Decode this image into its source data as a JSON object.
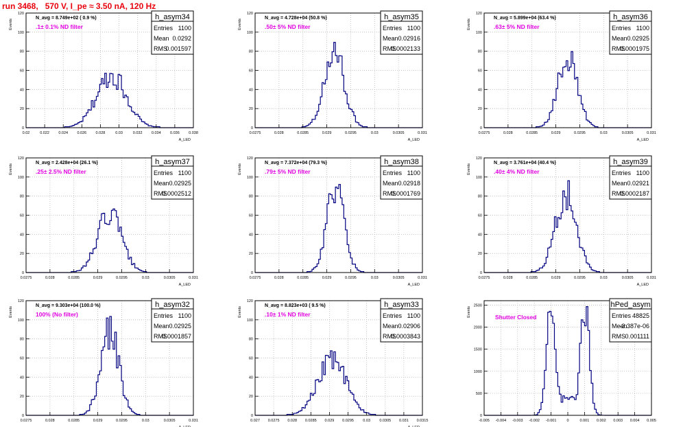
{
  "run_title": "run 3468,   570 V, I_pe ≈ 3.50 nA, 120 Hz",
  "y_axis_label": "Events",
  "stats_labels": [
    "Entries",
    "Mean",
    "RMS"
  ],
  "chart_data": [
    {
      "type": "bar",
      "name": "h_asym34",
      "nlabel": "N_avg = 8.749e+02 ( 0.9 %)",
      "filter": ".1± 0.1% ND filter",
      "entries": "1100",
      "mean": "0.0292",
      "rms": "0.001597",
      "xlim": [
        0.02,
        0.038
      ],
      "ylim": [
        0,
        120
      ],
      "yticks": [
        0,
        20,
        40,
        60,
        80,
        100,
        120
      ],
      "xticks": [
        "0.02",
        "0.022",
        "0.024",
        "0.026",
        "0.028",
        "0.03",
        "0.032",
        "0.034",
        "0.036",
        "0.038"
      ],
      "xlabel": "A_LED",
      "grid": true,
      "gaussian": {
        "mu": 0.0292,
        "sigma": 0.0016,
        "peak": 55
      }
    },
    {
      "type": "bar",
      "name": "h_asym35",
      "nlabel": "N_avg = 4.728e+04 (50.8 %)",
      "filter": ".50± 5% ND filter",
      "entries": "1100",
      "mean": "0.02916",
      "rms": "0.0002133",
      "xlim": [
        0.0275,
        0.031
      ],
      "ylim": [
        0,
        120
      ],
      "yticks": [
        0,
        20,
        40,
        60,
        80,
        100,
        120
      ],
      "xticks": [
        "0.0275",
        "0.028",
        "0.0285",
        "0.029",
        "0.0295",
        "0.03",
        "0.0305",
        "0.031"
      ],
      "xlabel": "A_LED",
      "grid": true,
      "gaussian": {
        "mu": 0.02916,
        "sigma": 0.00021,
        "peak": 78
      }
    },
    {
      "type": "bar",
      "name": "h_asym36",
      "nlabel": "N_avg = 5.899e+04 (63.4 %)",
      "filter": ".63± 5% ND filter",
      "entries": "1100",
      "mean": "0.02925",
      "rms": "0.0001975",
      "xlim": [
        0.0275,
        0.031
      ],
      "ylim": [
        0,
        120
      ],
      "yticks": [
        0,
        20,
        40,
        60,
        80,
        100,
        120
      ],
      "xticks": [
        "0.0275",
        "0.028",
        "0.0285",
        "0.029",
        "0.0295",
        "0.03",
        "0.0305",
        "0.031"
      ],
      "xlabel": "A_LED",
      "grid": true,
      "gaussian": {
        "mu": 0.02925,
        "sigma": 0.0002,
        "peak": 76
      }
    },
    {
      "type": "bar",
      "name": "h_asym37",
      "nlabel": "N_avg = 2.428e+04 (26.1 %)",
      "filter": ".25± 2.5% ND filter",
      "entries": "1100",
      "mean": "0.02925",
      "rms": "0.0002512",
      "xlim": [
        0.0275,
        0.031
      ],
      "ylim": [
        0,
        120
      ],
      "yticks": [
        0,
        20,
        40,
        60,
        80,
        100,
        120
      ],
      "xticks": [
        "0.0275",
        "0.028",
        "0.0285",
        "0.029",
        "0.0295",
        "0.03",
        "0.0305",
        "0.031"
      ],
      "xlabel": "A_LED",
      "grid": true,
      "gaussian": {
        "mu": 0.02925,
        "sigma": 0.00025,
        "peak": 62
      }
    },
    {
      "type": "bar",
      "name": "h_asym38",
      "nlabel": "N_avg = 7.372e+04 (79.3 %)",
      "filter": ".79± 5% ND filter",
      "entries": "1100",
      "mean": "0.02918",
      "rms": "0.0001769",
      "xlim": [
        0.0275,
        0.031
      ],
      "ylim": [
        0,
        120
      ],
      "yticks": [
        0,
        20,
        40,
        60,
        80,
        100,
        120
      ],
      "xticks": [
        "0.0275",
        "0.028",
        "0.0285",
        "0.029",
        "0.0295",
        "0.03",
        "0.0305",
        "0.031"
      ],
      "xlabel": "A_LED",
      "grid": true,
      "gaussian": {
        "mu": 0.02918,
        "sigma": 0.00018,
        "peak": 88
      }
    },
    {
      "type": "bar",
      "name": "h_asym39",
      "nlabel": "N_avg = 3.761e+04 (40.4 %)",
      "filter": ".40± 4% ND filter",
      "entries": "1100",
      "mean": "0.02921",
      "rms": "0.0002187",
      "xlim": [
        0.0275,
        0.031
      ],
      "ylim": [
        0,
        120
      ],
      "yticks": [
        0,
        20,
        40,
        60,
        80,
        100,
        120
      ],
      "xticks": [
        "0.0275",
        "0.028",
        "0.0285",
        "0.029",
        "0.0295",
        "0.03",
        "0.0305",
        "0.031"
      ],
      "xlabel": "A_LED",
      "grid": true,
      "gaussian": {
        "mu": 0.02921,
        "sigma": 0.00022,
        "peak": 82
      }
    },
    {
      "type": "bar",
      "name": "h_asym32",
      "nlabel": "N_avg = 9.303e+04 (100.0 %)",
      "filter": "100% (No filter)",
      "entries": "1100",
      "mean": "0.02925",
      "rms": "0.0001857",
      "xlim": [
        0.0275,
        0.031
      ],
      "ylim": [
        0,
        120
      ],
      "yticks": [
        0,
        20,
        40,
        60,
        80,
        100,
        120
      ],
      "xticks": [
        "0.0275",
        "0.028",
        "0.0285",
        "0.029",
        "0.0295",
        "0.03",
        "0.0305",
        "0.031"
      ],
      "xlabel": "A_LED",
      "grid": true,
      "gaussian": {
        "mu": 0.02925,
        "sigma": 0.00019,
        "peak": 88
      }
    },
    {
      "type": "bar",
      "name": "h_asym33",
      "nlabel": "N_avg = 8.823e+03 ( 9.5 %)",
      "filter": ".10± 1% ND filter",
      "entries": "1100",
      "mean": "0.02906",
      "rms": "0.0003843",
      "xlim": [
        0.027,
        0.0315
      ],
      "ylim": [
        0,
        120
      ],
      "yticks": [
        0,
        20,
        40,
        60,
        80,
        100,
        120
      ],
      "xticks": [
        "0.027",
        "0.0275",
        "0.028",
        "0.0285",
        "0.029",
        "0.0295",
        "0.03",
        "0.0305",
        "0.031",
        "0.0315"
      ],
      "xlabel": "A_LED",
      "grid": true,
      "gaussian": {
        "mu": 0.02906,
        "sigma": 0.00038,
        "peak": 58
      }
    },
    {
      "type": "bar",
      "name": "hPed_asym",
      "nlabel": "",
      "filter": "Shutter Closed",
      "entries": "48825",
      "mean": "-3.387e-06",
      "rms": "0.001111",
      "xlim": [
        -0.005,
        0.005
      ],
      "ylim": [
        0,
        2600
      ],
      "yticks": [
        0,
        500,
        1000,
        1500,
        2000,
        2500
      ],
      "xticks": [
        "-0.005",
        "-0.004",
        "-0.003",
        "-0.002",
        "-0.001",
        "0",
        "0.001",
        "0.002",
        "0.003",
        "0.004",
        "0.005"
      ],
      "xlabel": "",
      "grid": true,
      "bimodal": {
        "mu1": -0.00105,
        "mu2": 0.00105,
        "sigma": 0.00025,
        "peak": 2450,
        "valley": 380
      }
    }
  ],
  "colors": {
    "line": "#000080",
    "filter_text": "#e000e0",
    "title": "#e8000b",
    "grid": "#b8b8b8"
  }
}
